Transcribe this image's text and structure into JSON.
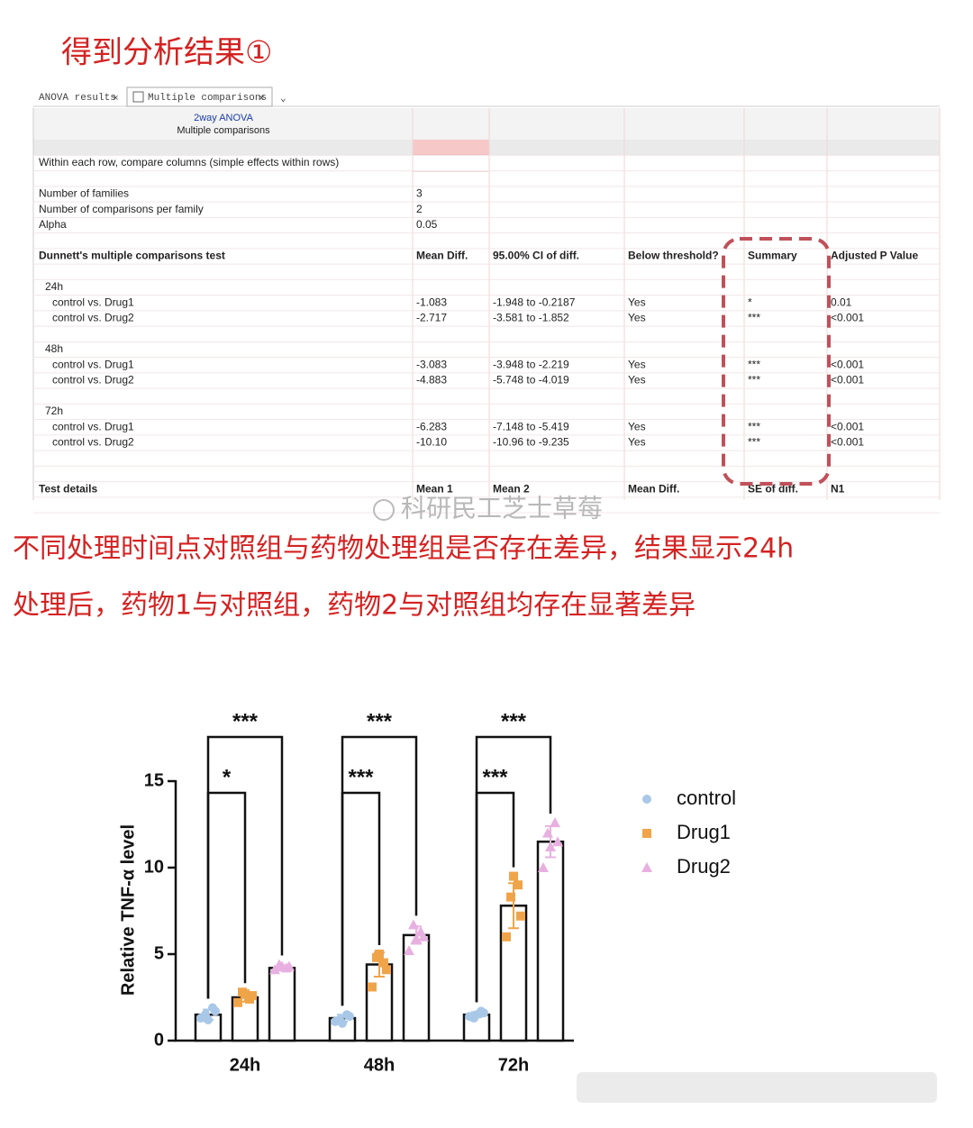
{
  "heading": "得到分析结果①",
  "tabs": [
    "ANOVA results",
    "Multiple comparisons"
  ],
  "table": {
    "title": "2way ANOVA",
    "subtitle": "Multiple comparisons",
    "rows": [
      [
        "Within each row, compare columns (simple effects within rows)"
      ],
      [
        "Number of families",
        "3"
      ],
      [
        "Number of comparisons per family",
        "2"
      ],
      [
        "Alpha",
        "0.05"
      ],
      [
        "Dunnett's multiple comparisons test",
        "Mean Diff.",
        "95.00% CI of diff.",
        "Below threshold?",
        "Summary",
        "Adjusted P Value"
      ],
      [
        "24h"
      ],
      [
        "control vs. Drug1",
        "-1.083",
        "-1.948 to -0.2187",
        "Yes",
        "*",
        "0.01"
      ],
      [
        "control vs. Drug2",
        "-2.717",
        "-3.581 to -1.852",
        "Yes",
        "***",
        "<0.001"
      ],
      [
        "48h"
      ],
      [
        "control vs. Drug1",
        "-3.083",
        "-3.948 to -2.219",
        "Yes",
        "***",
        "<0.001"
      ],
      [
        "control vs. Drug2",
        "-4.883",
        "-5.748 to -4.019",
        "Yes",
        "***",
        "<0.001"
      ],
      [
        "72h"
      ],
      [
        "control vs. Drug1",
        "-6.283",
        "-7.148 to -5.419",
        "Yes",
        "***",
        "<0.001"
      ],
      [
        "control vs. Drug2",
        "-10.10",
        "-10.96 to -9.235",
        "Yes",
        "***",
        "<0.001"
      ],
      [
        "Test details",
        "Mean 1",
        "Mean 2",
        "Mean Diff.",
        "SE of diff.",
        "N1"
      ]
    ]
  },
  "watermark": "科研民工芝士草莓",
  "caption": [
    "不同处理时间点对照组与药物处理组是否存在差异，结果显示24h",
    "处理后，药物1与对照组，药物2与对照组均存在显著差异"
  ],
  "chart_data": {
    "type": "bar",
    "y_label": "Relative TNF-α level",
    "categories": [
      "24h",
      "48h",
      "72h"
    ],
    "ylim": [
      0,
      15
    ],
    "yticks": [
      0,
      5,
      10,
      15
    ],
    "legend": "right",
    "series": [
      {
        "name": "control",
        "color": "#a9c8e8",
        "marker": "circle",
        "values": [
          1.5,
          1.3,
          1.5
        ],
        "errors": [
          0.3,
          0.2,
          0.15
        ],
        "points": [
          [
            1.3,
            1.7,
            1.5,
            1.9,
            1.2
          ],
          [
            1.1,
            1.4,
            1.2,
            1.5,
            1.0
          ],
          [
            1.4,
            1.6,
            1.3,
            1.7,
            1.5
          ]
        ]
      },
      {
        "name": "Drug1",
        "color": "#f0a44a",
        "marker": "square",
        "values": [
          2.5,
          4.4,
          7.8
        ],
        "errors": [
          0.25,
          0.7,
          1.3
        ],
        "points": [
          [
            2.2,
            2.6,
            2.8,
            2.4,
            2.7
          ],
          [
            3.1,
            4.1,
            4.8,
            4.5,
            5.0
          ],
          [
            6.0,
            7.2,
            8.3,
            9.0,
            9.5
          ]
        ],
        "significance": [
          "*",
          "***",
          "***"
        ]
      },
      {
        "name": "Drug2",
        "color": "#e8b0e0",
        "marker": "triangle",
        "values": [
          4.2,
          6.1,
          11.5
        ],
        "errors": [
          0.15,
          0.5,
          0.9
        ],
        "points": [
          [
            4.1,
            4.3,
            4.4,
            4.2,
            4.3
          ],
          [
            5.2,
            6.0,
            6.7,
            6.3,
            5.9
          ],
          [
            10.0,
            11.5,
            12.0,
            12.6,
            11.2
          ]
        ],
        "significance": [
          "***",
          "***",
          "***"
        ]
      }
    ]
  }
}
